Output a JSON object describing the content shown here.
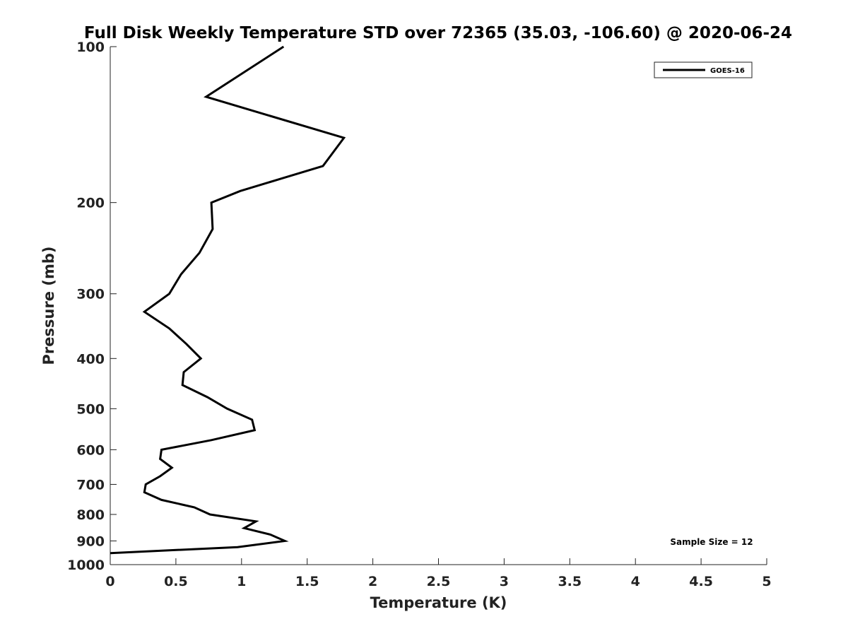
{
  "chart_data": {
    "type": "line",
    "title": "Full Disk Weekly Temperature STD over 72365 (35.03, -106.60) @ 2020-06-24",
    "xlabel": "Temperature (K)",
    "ylabel": "Pressure (mb)",
    "xlim": [
      0,
      5
    ],
    "ylim": [
      1000,
      100
    ],
    "y_scale": "log",
    "y_reversed": true,
    "x_ticks": [
      "0",
      "0.5",
      "1",
      "1.5",
      "2",
      "2.5",
      "3",
      "3.5",
      "4",
      "4.5",
      "5"
    ],
    "x_tick_values": [
      0,
      0.5,
      1,
      1.5,
      2,
      2.5,
      3,
      3.5,
      4,
      4.5,
      5
    ],
    "y_ticks": [
      "100",
      "200",
      "300",
      "400",
      "500",
      "600",
      "700",
      "800",
      "900",
      "1000"
    ],
    "y_tick_values": [
      100,
      200,
      300,
      400,
      500,
      600,
      700,
      800,
      900,
      1000
    ],
    "grid": false,
    "legend": "top-right",
    "series": [
      {
        "name": "GOES-16",
        "color": "#000000",
        "points": [
          [
            1.32,
            100
          ],
          [
            0.73,
            125
          ],
          [
            1.78,
            150
          ],
          [
            1.62,
            170
          ],
          [
            0.99,
            190
          ],
          [
            0.77,
            200
          ],
          [
            0.78,
            225
          ],
          [
            0.68,
            250
          ],
          [
            0.54,
            275
          ],
          [
            0.45,
            300
          ],
          [
            0.26,
            325
          ],
          [
            0.45,
            350
          ],
          [
            0.58,
            375
          ],
          [
            0.69,
            400
          ],
          [
            0.56,
            425
          ],
          [
            0.55,
            450
          ],
          [
            0.74,
            475
          ],
          [
            0.89,
            500
          ],
          [
            1.08,
            525
          ],
          [
            1.1,
            550
          ],
          [
            0.77,
            575
          ],
          [
            0.39,
            600
          ],
          [
            0.38,
            625
          ],
          [
            0.47,
            650
          ],
          [
            0.38,
            675
          ],
          [
            0.27,
            700
          ],
          [
            0.26,
            725
          ],
          [
            0.39,
            750
          ],
          [
            0.64,
            775
          ],
          [
            0.76,
            800
          ],
          [
            1.11,
            825
          ],
          [
            1.02,
            850
          ],
          [
            1.22,
            875
          ],
          [
            1.33,
            900
          ],
          [
            0.97,
            925
          ],
          [
            0.0,
            950
          ]
        ]
      }
    ],
    "annotation": "Sample Size = 12"
  }
}
